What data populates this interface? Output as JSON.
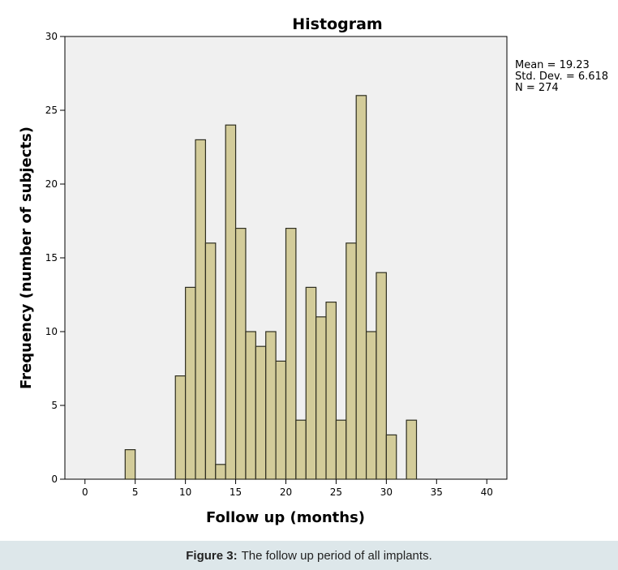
{
  "chart_data": {
    "type": "bar",
    "title": "Histogram",
    "xlabel": "Follow up (months)",
    "ylabel": "Frequency (number of subjects)",
    "xlim": [
      -2,
      42
    ],
    "ylim": [
      0,
      30
    ],
    "xticks": [
      0,
      5,
      10,
      15,
      20,
      25,
      30,
      35,
      40
    ],
    "yticks": [
      0,
      5,
      10,
      15,
      20,
      25,
      30
    ],
    "bin_width": 1,
    "bins": [
      {
        "x": 4.5,
        "count": 2
      },
      {
        "x": 9.5,
        "count": 7
      },
      {
        "x": 10.5,
        "count": 13
      },
      {
        "x": 11.5,
        "count": 23
      },
      {
        "x": 12.5,
        "count": 16
      },
      {
        "x": 13.5,
        "count": 1
      },
      {
        "x": 14.5,
        "count": 24
      },
      {
        "x": 15.5,
        "count": 17
      },
      {
        "x": 16.5,
        "count": 10
      },
      {
        "x": 17.5,
        "count": 9
      },
      {
        "x": 18.5,
        "count": 10
      },
      {
        "x": 19.5,
        "count": 8
      },
      {
        "x": 20.5,
        "count": 17
      },
      {
        "x": 21.5,
        "count": 4
      },
      {
        "x": 22.5,
        "count": 13
      },
      {
        "x": 23.5,
        "count": 11
      },
      {
        "x": 24.5,
        "count": 12
      },
      {
        "x": 25.5,
        "count": 4
      },
      {
        "x": 26.5,
        "count": 16
      },
      {
        "x": 27.5,
        "count": 26
      },
      {
        "x": 28.5,
        "count": 10
      },
      {
        "x": 29.5,
        "count": 14
      },
      {
        "x": 30.5,
        "count": 3
      },
      {
        "x": 32.5,
        "count": 4
      }
    ],
    "stats": [
      "Mean = 19.23",
      "Std. Dev. = 6.618",
      "N = 274"
    ],
    "colors": {
      "bar_fill": "#d3cc9a",
      "bar_stroke": "#2e2e20",
      "plot_bg": "#f0f0f0"
    }
  },
  "caption": {
    "label": "Figure 3:",
    "text": "The follow up period of all implants."
  }
}
